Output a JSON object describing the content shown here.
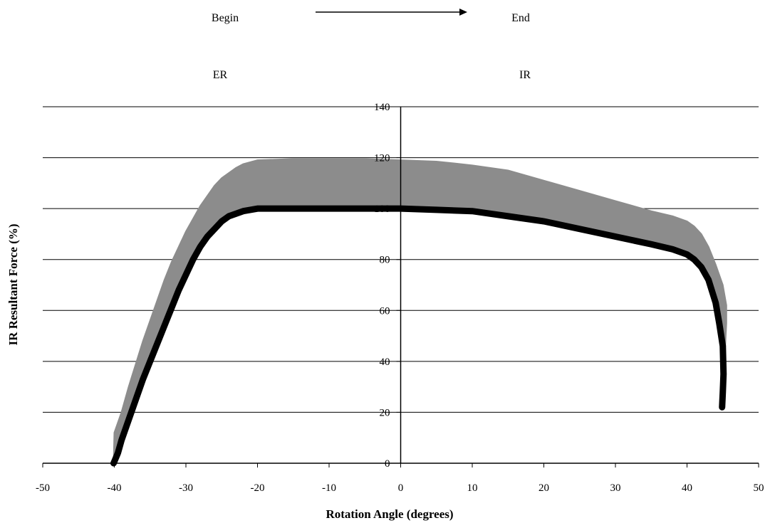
{
  "chart_data": {
    "type": "area",
    "title": "",
    "xlabel": "Rotation Angle (degrees)",
    "ylabel": "IR Resultant Force (%)",
    "xlim": [
      -50,
      50
    ],
    "ylim": [
      0,
      140
    ],
    "x_ticks": [
      -50,
      -40,
      -30,
      -20,
      -10,
      0,
      10,
      20,
      30,
      40,
      50
    ],
    "y_ticks": [
      0,
      20,
      40,
      60,
      80,
      100,
      120,
      140
    ],
    "grid": "horizontal",
    "annotations": {
      "begin": "Begin",
      "end": "End",
      "er": "ER",
      "ir": "IR"
    },
    "colors": {
      "band": "#8c8c8c",
      "line": "#000000",
      "grid": "#000000"
    },
    "series": [
      {
        "role": "lower-curve",
        "points": [
          [
            -40.1,
            0
          ],
          [
            -39.5,
            4
          ],
          [
            -39,
            9
          ],
          [
            -38,
            17
          ],
          [
            -37,
            25
          ],
          [
            -36,
            33
          ],
          [
            -35,
            40
          ],
          [
            -34,
            47
          ],
          [
            -33,
            54
          ],
          [
            -32,
            61
          ],
          [
            -31,
            68
          ],
          [
            -30,
            74
          ],
          [
            -29,
            80
          ],
          [
            -28,
            85
          ],
          [
            -27,
            89
          ],
          [
            -26,
            92
          ],
          [
            -25,
            95
          ],
          [
            -24,
            97
          ],
          [
            -22,
            99
          ],
          [
            -20,
            100
          ],
          [
            -15,
            100
          ],
          [
            -10,
            100
          ],
          [
            -5,
            100
          ],
          [
            0,
            100
          ],
          [
            5,
            99.5
          ],
          [
            10,
            99
          ],
          [
            15,
            97
          ],
          [
            20,
            95
          ],
          [
            25,
            92
          ],
          [
            30,
            89
          ],
          [
            35,
            86
          ],
          [
            38,
            84
          ],
          [
            40,
            82
          ],
          [
            41,
            80
          ],
          [
            42,
            77
          ],
          [
            43,
            72
          ],
          [
            44,
            63
          ],
          [
            44.5,
            55
          ],
          [
            45,
            46
          ],
          [
            45.1,
            35
          ],
          [
            45,
            28
          ],
          [
            44.9,
            22
          ]
        ]
      },
      {
        "role": "upper-band",
        "points": [
          [
            -40,
            12
          ],
          [
            -39,
            20
          ],
          [
            -38,
            30
          ],
          [
            -37,
            39
          ],
          [
            -36,
            48
          ],
          [
            -35,
            56
          ],
          [
            -34,
            64
          ],
          [
            -33,
            72
          ],
          [
            -32,
            79
          ],
          [
            -31,
            85
          ],
          [
            -30,
            91
          ],
          [
            -29,
            96
          ],
          [
            -28,
            101
          ],
          [
            -27,
            105
          ],
          [
            -26,
            109
          ],
          [
            -25,
            112
          ],
          [
            -24,
            114
          ],
          [
            -23,
            116
          ],
          [
            -22,
            117.5
          ],
          [
            -20,
            119
          ],
          [
            -15,
            119.5
          ],
          [
            -10,
            119.5
          ],
          [
            -5,
            119.5
          ],
          [
            0,
            119
          ],
          [
            5,
            118.5
          ],
          [
            10,
            117
          ],
          [
            15,
            115
          ],
          [
            20,
            111
          ],
          [
            25,
            107
          ],
          [
            30,
            103
          ],
          [
            35,
            99
          ],
          [
            38,
            97
          ],
          [
            40,
            95
          ],
          [
            41,
            93
          ],
          [
            42,
            90
          ],
          [
            43,
            85
          ],
          [
            44,
            78
          ],
          [
            45,
            70
          ],
          [
            45.5,
            62
          ],
          [
            45.5,
            55
          ]
        ]
      }
    ]
  }
}
